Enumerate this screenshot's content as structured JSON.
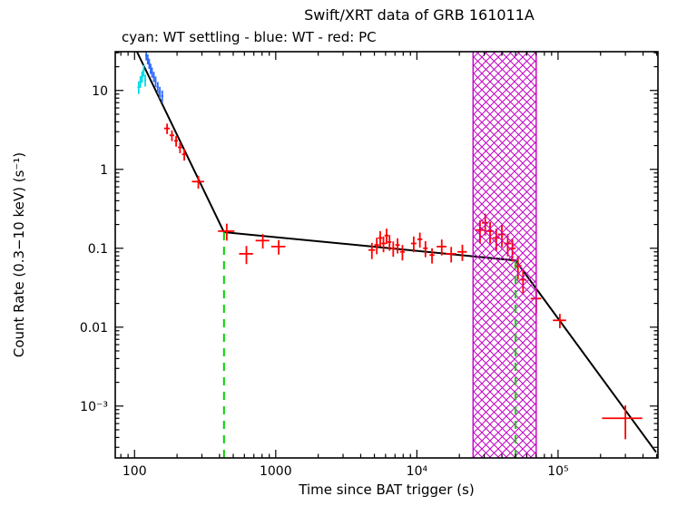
{
  "title": "Swift/XRT data of GRB 161011A",
  "subtitle": "cyan: WT settling - blue: WT - red: PC",
  "colors": {
    "wt_settling": "#00dde8",
    "wt": "#2f6bff",
    "pc": "#ff0000",
    "fit": "#000000",
    "break_lines": "#00d400",
    "band": "#c400c4"
  },
  "chart_data": {
    "type": "scatter",
    "title": "Swift/XRT data of GRB 161011A",
    "subtitle": "cyan: WT settling - blue: WT - red: PC",
    "xlabel": "Time since BAT trigger (s)",
    "ylabel": "Count Rate (0.3−10 keV) (s⁻¹)",
    "xscale": "log",
    "yscale": "log",
    "xlim": [
      73,
      510000
    ],
    "ylim": [
      0.00022,
      31
    ],
    "grid": false,
    "x_ticks": [
      {
        "v": 100,
        "label": "100"
      },
      {
        "v": 1000,
        "label": "1000"
      },
      {
        "v": 10000,
        "label": "10⁴"
      },
      {
        "v": 100000,
        "label": "10⁵"
      }
    ],
    "y_ticks": [
      {
        "v": 10,
        "label": "10"
      },
      {
        "v": 1,
        "label": "1"
      },
      {
        "v": 0.1,
        "label": "0.1"
      },
      {
        "v": 0.01,
        "label": "0.01"
      },
      {
        "v": 0.001,
        "label": "10⁻³"
      }
    ],
    "point_format": "[x, y, x_err, y_err]",
    "series": [
      {
        "name": "WT settling",
        "color_key": "wt_settling",
        "points": [
          [
            107,
            11,
            2,
            2
          ],
          [
            110,
            13,
            2,
            2.2
          ],
          [
            113,
            15,
            2,
            2.5
          ],
          [
            116,
            18,
            2,
            3
          ],
          [
            119,
            13.5,
            2,
            2.3
          ]
        ]
      },
      {
        "name": "WT",
        "color_key": "wt",
        "points": [
          [
            121,
            28,
            2,
            4
          ],
          [
            124,
            25,
            2,
            3.6
          ],
          [
            127,
            22,
            2,
            3.2
          ],
          [
            130,
            19,
            2,
            2.8
          ],
          [
            133,
            17,
            2,
            2.5
          ],
          [
            137,
            15,
            2,
            2.2
          ],
          [
            141,
            13,
            2,
            2
          ],
          [
            146,
            11,
            2.5,
            1.8
          ],
          [
            151,
            9.5,
            2.5,
            1.6
          ],
          [
            157,
            8.5,
            3,
            1.5
          ]
        ]
      },
      {
        "name": "PC",
        "color_key": "pc",
        "points": [
          [
            170,
            3.3,
            8,
            0.5
          ],
          [
            184,
            2.7,
            7,
            0.42
          ],
          [
            197,
            2.3,
            6,
            0.36
          ],
          [
            210,
            1.9,
            7,
            0.3
          ],
          [
            225,
            1.55,
            8,
            0.26
          ],
          [
            283,
            0.7,
            28,
            0.13
          ],
          [
            450,
            0.165,
            60,
            0.04
          ],
          [
            620,
            0.085,
            70,
            0.022
          ],
          [
            810,
            0.125,
            90,
            0.026
          ],
          [
            1050,
            0.105,
            120,
            0.022
          ],
          [
            4800,
            0.095,
            260,
            0.022
          ],
          [
            5200,
            0.11,
            200,
            0.026
          ],
          [
            5500,
            0.135,
            200,
            0.03
          ],
          [
            5800,
            0.115,
            200,
            0.026
          ],
          [
            6100,
            0.145,
            200,
            0.032
          ],
          [
            6400,
            0.12,
            200,
            0.027
          ],
          [
            6800,
            0.1,
            250,
            0.022
          ],
          [
            7300,
            0.11,
            260,
            0.024
          ],
          [
            7900,
            0.09,
            300,
            0.02
          ],
          [
            9500,
            0.115,
            420,
            0.026
          ],
          [
            10500,
            0.13,
            420,
            0.028
          ],
          [
            11500,
            0.1,
            430,
            0.023
          ],
          [
            12800,
            0.082,
            520,
            0.018
          ],
          [
            15000,
            0.105,
            1200,
            0.024
          ],
          [
            17500,
            0.085,
            1500,
            0.019
          ],
          [
            21000,
            0.09,
            1600,
            0.021
          ],
          [
            28000,
            0.17,
            2000,
            0.055
          ],
          [
            30500,
            0.21,
            1600,
            0.065
          ],
          [
            33000,
            0.165,
            2000,
            0.05
          ],
          [
            36500,
            0.135,
            2100,
            0.042
          ],
          [
            40000,
            0.15,
            2500,
            0.047
          ],
          [
            44000,
            0.115,
            2600,
            0.036
          ],
          [
            47500,
            0.1,
            2600,
            0.032
          ],
          [
            52000,
            0.06,
            3000,
            0.02
          ],
          [
            56500,
            0.04,
            3200,
            0.014
          ],
          [
            70000,
            0.023,
            6000,
            0.008
          ],
          [
            103000,
            0.0122,
            11000,
            0.0025
          ],
          [
            300000,
            0.0007,
            95000,
            0.00032
          ]
        ]
      }
    ],
    "fit_line": [
      [
        104,
        31
      ],
      [
        430,
        0.16
      ],
      [
        50000,
        0.07
      ],
      [
        495000,
        0.00026
      ]
    ],
    "break_lines_x": [
      {
        "x": 430,
        "y_top": 0.16
      },
      {
        "x": 50000,
        "y_top": 0.07
      }
    ],
    "shaded_band": {
      "x0": 25000,
      "x1": 70000
    }
  }
}
